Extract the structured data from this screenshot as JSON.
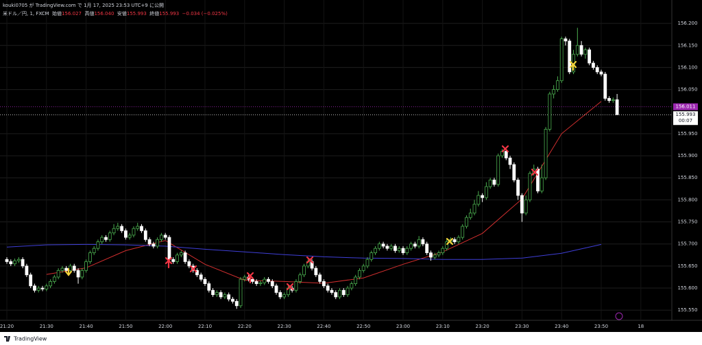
{
  "header": {
    "attribution": "kouki0705 が TradingView.com で 1月 17, 2025 23:53 UTC+9 に公開",
    "symbol": "米ドル／円, 1, FXCM",
    "ohlc": [
      {
        "label": "始値",
        "value": "156.027"
      },
      {
        "label": "高値",
        "value": "156.040"
      },
      {
        "label": "安値",
        "value": "155.993"
      },
      {
        "label": "終値",
        "value": "155.993"
      }
    ],
    "change": "−0.034 (−0.025%)"
  },
  "footer": {
    "brand": "TradingView"
  },
  "chart_data": {
    "type": "candlestick",
    "up_color": "#4caf50",
    "down_color": "#ffffff",
    "grid": true,
    "categories": [
      "21:20",
      null,
      null,
      null,
      null,
      null,
      null,
      null,
      null,
      null,
      "21:30",
      null,
      null,
      null,
      null,
      null,
      null,
      null,
      null,
      null,
      "21:40",
      null,
      null,
      null,
      null,
      null,
      null,
      null,
      null,
      null,
      "21:50",
      null,
      null,
      null,
      null,
      null,
      null,
      null,
      null,
      null,
      "22:00",
      null,
      null,
      null,
      null,
      null,
      null,
      null,
      null,
      null,
      "22:10",
      null,
      null,
      null,
      null,
      null,
      null,
      null,
      null,
      null,
      "22:20",
      null,
      null,
      null,
      null,
      null,
      null,
      null,
      null,
      null,
      "22:30",
      null,
      null,
      null,
      null,
      null,
      null,
      null,
      null,
      null,
      "22:40",
      null,
      null,
      null,
      null,
      null,
      null,
      null,
      null,
      null,
      "22:50",
      null,
      null,
      null,
      null,
      null,
      null,
      null,
      null,
      null,
      "23:00",
      null,
      null,
      null,
      null,
      null,
      null,
      null,
      null,
      null,
      "23:10",
      null,
      null,
      null,
      null,
      null,
      null,
      null,
      null,
      null,
      "23:20",
      null,
      null,
      null,
      null,
      null,
      null,
      null,
      null,
      null,
      "23:30",
      null,
      null,
      null,
      null,
      null,
      null,
      null,
      null,
      null,
      "23:40",
      null,
      null,
      null,
      null,
      null,
      null,
      null,
      null,
      null,
      "23:50",
      null,
      null,
      null,
      null,
      null,
      null,
      null,
      null,
      null,
      "18"
    ],
    "open": [
      155.665,
      155.66,
      155.655,
      155.662,
      155.665,
      155.65,
      155.63,
      155.605,
      155.595,
      155.6,
      155.598,
      155.605,
      155.615,
      155.625,
      155.64,
      155.645,
      155.64,
      155.65,
      155.64,
      155.625,
      155.64,
      155.66,
      155.68,
      155.69,
      155.705,
      155.715,
      155.71,
      155.725,
      155.735,
      155.74,
      155.73,
      155.715,
      155.72,
      155.735,
      155.74,
      155.73,
      155.71,
      155.7,
      155.695,
      155.71,
      155.72,
      155.715,
      155.665,
      155.66,
      155.675,
      155.68,
      155.66,
      155.65,
      155.64,
      155.63,
      155.62,
      155.61,
      155.595,
      155.585,
      155.59,
      155.58,
      155.585,
      155.575,
      155.57,
      155.56,
      155.62,
      155.625,
      155.62,
      155.615,
      155.61,
      155.612,
      155.62,
      155.615,
      155.605,
      155.59,
      155.58,
      155.585,
      155.6,
      155.595,
      155.615,
      155.63,
      155.65,
      155.66,
      155.645,
      155.63,
      155.615,
      155.605,
      155.595,
      155.59,
      155.58,
      155.595,
      155.585,
      155.6,
      155.61,
      155.625,
      155.64,
      155.65,
      155.665,
      155.68,
      155.69,
      155.7,
      155.695,
      155.69,
      155.695,
      155.685,
      155.69,
      155.68,
      155.69,
      155.7,
      155.695,
      155.71,
      155.7,
      155.68,
      155.67,
      155.675,
      155.68,
      155.69,
      155.705,
      155.71,
      155.705,
      155.715,
      155.74,
      155.76,
      155.77,
      155.79,
      155.81,
      155.805,
      155.83,
      155.845,
      155.835,
      155.9,
      155.91,
      155.895,
      155.88,
      155.845,
      155.81,
      155.77,
      155.8,
      155.86,
      155.87,
      155.82,
      155.85,
      155.96,
      156.04,
      156.05,
      156.07,
      156.165,
      156.16,
      156.09,
      156.13,
      156.15,
      156.13,
      156.14,
      156.11,
      156.1,
      156.09,
      156.085,
      156.03,
      156.025,
      156.027,
      null,
      null,
      null,
      null,
      null,
      null
    ],
    "high": [
      155.67,
      155.665,
      155.667,
      155.67,
      155.67,
      155.655,
      155.635,
      155.61,
      155.605,
      155.605,
      155.61,
      155.62,
      155.63,
      155.645,
      155.65,
      155.65,
      155.655,
      155.655,
      155.645,
      155.645,
      155.665,
      155.685,
      155.695,
      155.71,
      155.72,
      155.72,
      155.73,
      155.745,
      155.748,
      155.745,
      155.735,
      155.725,
      155.74,
      155.748,
      155.745,
      155.735,
      155.715,
      155.705,
      155.715,
      155.725,
      155.725,
      155.72,
      155.67,
      155.68,
      155.685,
      155.685,
      155.665,
      155.655,
      155.645,
      155.635,
      155.625,
      155.615,
      155.6,
      155.595,
      155.595,
      155.59,
      155.59,
      155.58,
      155.575,
      155.625,
      155.63,
      155.63,
      155.625,
      155.62,
      155.617,
      155.625,
      155.625,
      155.62,
      155.61,
      155.595,
      155.59,
      155.605,
      155.605,
      155.62,
      155.635,
      155.655,
      155.665,
      155.665,
      155.65,
      155.635,
      155.62,
      155.61,
      155.6,
      155.595,
      155.6,
      155.6,
      155.605,
      155.615,
      155.63,
      155.645,
      155.655,
      155.67,
      155.685,
      155.695,
      155.705,
      155.705,
      155.7,
      155.7,
      155.7,
      155.695,
      155.695,
      155.695,
      155.705,
      155.705,
      155.718,
      155.715,
      155.705,
      155.685,
      155.68,
      155.685,
      155.695,
      155.71,
      155.715,
      155.715,
      155.72,
      155.745,
      155.765,
      155.78,
      155.8,
      155.82,
      155.815,
      155.84,
      155.85,
      155.85,
      155.905,
      155.915,
      155.915,
      155.9,
      155.885,
      155.85,
      155.815,
      155.81,
      155.865,
      155.88,
      155.875,
      155.88,
      155.965,
      156.045,
      156.06,
      156.08,
      156.17,
      156.17,
      156.165,
      156.14,
      156.19,
      156.16,
      156.145,
      156.145,
      156.115,
      156.105,
      156.095,
      156.09,
      156.035,
      156.032,
      156.04,
      null,
      null,
      null,
      null,
      null,
      null
    ],
    "low": [
      155.655,
      155.65,
      155.65,
      155.657,
      155.645,
      155.625,
      155.6,
      155.59,
      155.59,
      155.593,
      155.593,
      155.6,
      155.61,
      155.62,
      155.635,
      155.635,
      155.635,
      155.635,
      155.61,
      155.62,
      155.635,
      155.655,
      155.675,
      155.685,
      155.7,
      155.705,
      155.705,
      155.72,
      155.73,
      155.725,
      155.71,
      155.71,
      155.715,
      155.73,
      155.725,
      155.705,
      155.695,
      155.69,
      155.69,
      155.705,
      155.71,
      155.66,
      155.655,
      155.655,
      155.67,
      155.655,
      155.645,
      155.635,
      155.625,
      155.615,
      155.605,
      155.59,
      155.58,
      155.58,
      155.575,
      155.575,
      155.57,
      155.565,
      155.553,
      155.555,
      155.615,
      155.615,
      155.61,
      155.605,
      155.605,
      155.607,
      155.61,
      155.6,
      155.585,
      155.575,
      155.575,
      155.58,
      155.59,
      155.59,
      155.61,
      155.625,
      155.645,
      155.64,
      155.625,
      155.61,
      155.6,
      155.59,
      155.585,
      155.575,
      155.575,
      155.58,
      155.58,
      155.595,
      155.605,
      155.62,
      155.635,
      155.645,
      155.66,
      155.675,
      155.685,
      155.69,
      155.685,
      155.685,
      155.68,
      155.68,
      155.675,
      155.675,
      155.685,
      155.69,
      155.69,
      155.695,
      155.675,
      155.662,
      155.665,
      155.67,
      155.675,
      155.685,
      155.7,
      155.7,
      155.7,
      155.71,
      155.735,
      155.755,
      155.765,
      155.785,
      155.795,
      155.8,
      155.825,
      155.83,
      155.83,
      155.895,
      155.89,
      155.87,
      155.84,
      155.8,
      155.75,
      155.765,
      155.795,
      155.855,
      155.815,
      155.815,
      155.845,
      155.955,
      156.03,
      156.045,
      156.065,
      156.15,
      156.085,
      156.085,
      156.125,
      156.125,
      156.12,
      156.105,
      156.095,
      156.085,
      156.08,
      156.025,
      156.02,
      156.02,
      155.993,
      null,
      null,
      null,
      null,
      null,
      null
    ],
    "close": [
      155.66,
      155.655,
      155.662,
      155.665,
      155.65,
      155.63,
      155.605,
      155.595,
      155.6,
      155.598,
      155.605,
      155.615,
      155.625,
      155.64,
      155.645,
      155.64,
      155.65,
      155.64,
      155.625,
      155.64,
      155.66,
      155.68,
      155.69,
      155.705,
      155.715,
      155.71,
      155.725,
      155.735,
      155.74,
      155.73,
      155.715,
      155.72,
      155.735,
      155.74,
      155.73,
      155.71,
      155.7,
      155.695,
      155.71,
      155.72,
      155.715,
      155.665,
      155.66,
      155.675,
      155.68,
      155.66,
      155.65,
      155.64,
      155.63,
      155.62,
      155.61,
      155.595,
      155.585,
      155.59,
      155.58,
      155.585,
      155.575,
      155.57,
      155.56,
      155.62,
      155.625,
      155.62,
      155.615,
      155.61,
      155.612,
      155.62,
      155.615,
      155.605,
      155.59,
      155.58,
      155.585,
      155.6,
      155.595,
      155.615,
      155.63,
      155.65,
      155.66,
      155.645,
      155.63,
      155.615,
      155.605,
      155.595,
      155.59,
      155.58,
      155.595,
      155.585,
      155.6,
      155.61,
      155.625,
      155.64,
      155.65,
      155.665,
      155.68,
      155.69,
      155.7,
      155.695,
      155.69,
      155.695,
      155.685,
      155.69,
      155.68,
      155.69,
      155.7,
      155.695,
      155.71,
      155.7,
      155.68,
      155.67,
      155.675,
      155.68,
      155.69,
      155.705,
      155.71,
      155.705,
      155.715,
      155.74,
      155.76,
      155.77,
      155.79,
      155.81,
      155.805,
      155.83,
      155.845,
      155.835,
      155.9,
      155.91,
      155.895,
      155.88,
      155.845,
      155.81,
      155.77,
      155.8,
      155.86,
      155.87,
      155.82,
      155.85,
      155.96,
      156.04,
      156.05,
      156.07,
      156.165,
      156.16,
      156.09,
      156.13,
      156.15,
      156.13,
      156.14,
      156.11,
      156.1,
      156.09,
      156.085,
      156.03,
      156.025,
      156.027,
      155.993,
      null,
      null,
      null,
      null,
      null,
      null
    ],
    "overlays": [
      {
        "color": "#d32f2f",
        "x": [
          "21:30",
          "21:40",
          "21:50",
          "22:00",
          "22:10",
          "22:20",
          "22:30",
          "22:40",
          "22:50",
          "23:00",
          "23:10",
          "23:20",
          "23:30",
          "23:40",
          "23:50"
        ],
        "values": [
          155.631,
          155.646,
          155.685,
          155.708,
          155.654,
          155.618,
          155.615,
          155.611,
          155.623,
          155.654,
          155.682,
          155.724,
          155.802,
          155.95,
          156.023
        ]
      },
      {
        "color": "#3f3fd8",
        "x": [
          "21:20",
          "21:30",
          "21:40",
          "21:50",
          "22:00",
          "22:10",
          "22:20",
          "22:30",
          "22:40",
          "22:50",
          "23:00",
          "23:10",
          "23:20",
          "23:30",
          "23:40",
          "23:50"
        ],
        "values": [
          155.693,
          155.698,
          155.699,
          155.698,
          155.695,
          155.688,
          155.682,
          155.676,
          155.671,
          155.668,
          155.667,
          155.665,
          155.665,
          155.668,
          155.679,
          155.699
        ]
      }
    ],
    "price_lines": [
      {
        "value": 156.011,
        "color": "#9c27b0"
      },
      {
        "value": 155.993,
        "color": "#ffffff",
        "countdown": "00:07"
      }
    ],
    "ylim": [
      155.527,
      156.253
    ],
    "yticks": [
      {
        "value": 156.2,
        "label": "156.200"
      },
      {
        "value": 156.15,
        "label": "156.150"
      },
      {
        "value": 156.1,
        "label": "156.100"
      },
      {
        "value": 156.05,
        "label": "156.050"
      },
      {
        "value": 155.95,
        "label": "155.950"
      },
      {
        "value": 155.9,
        "label": "155.900"
      },
      {
        "value": 155.85,
        "label": "155.850"
      },
      {
        "value": 155.8,
        "label": "155.800"
      },
      {
        "value": 155.75,
        "label": "155.750"
      },
      {
        "value": 155.7,
        "label": "155.700"
      },
      {
        "value": 155.65,
        "label": "155.650"
      },
      {
        "value": 155.6,
        "label": "155.600"
      },
      {
        "value": 155.55,
        "label": "155.550"
      }
    ]
  }
}
